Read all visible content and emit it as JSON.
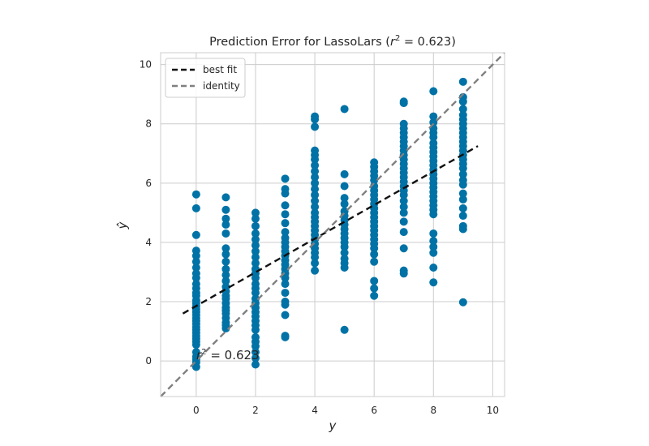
{
  "chart_data": {
    "type": "scatter",
    "title": "Prediction Error for LassoLars (r² = 0.623)",
    "title_parts": {
      "prefix": "Prediction Error for LassoLars (",
      "var": "r",
      "sup": "2",
      "suffix": " = 0.623)"
    },
    "xlabel": "y",
    "ylabel": "ŷ",
    "xlim": [
      -1.2,
      10.4
    ],
    "ylim": [
      -1.2,
      10.4
    ],
    "xticks": [
      0,
      2,
      4,
      6,
      8,
      10
    ],
    "yticks": [
      0,
      2,
      4,
      6,
      8,
      10
    ],
    "grid": true,
    "legend_position": "top-left",
    "annotation": {
      "var": "r",
      "sup": "2",
      "text": " = 0.623",
      "x": 0.0,
      "y": 0.0
    },
    "colors": {
      "points": "#0072a6",
      "best_fit": "#111111",
      "identity": "#808080",
      "grid": "#cccccc",
      "frame": "#cccccc"
    },
    "best_fit": {
      "name": "best fit",
      "x": [
        -0.45,
        9.5
      ],
      "y": [
        1.6,
        7.25
      ]
    },
    "identity": {
      "name": "identity",
      "x": [
        -1.2,
        10.4
      ],
      "y": [
        -1.2,
        10.4
      ]
    },
    "series": [
      {
        "x": 0,
        "y": [
          5.62,
          5.15,
          4.25,
          3.72,
          3.55,
          3.35,
          3.15,
          2.95,
          2.8,
          2.6,
          2.45,
          2.3,
          2.2,
          2.05,
          1.95,
          1.85,
          1.75,
          1.65,
          1.55,
          1.45,
          1.35,
          1.25,
          1.15,
          1.05,
          0.95,
          0.85,
          0.75,
          0.65,
          0.55,
          0.3,
          0.15,
          0.05,
          -0.05,
          -0.2
        ]
      },
      {
        "x": 1,
        "y": [
          5.52,
          5.1,
          4.8,
          4.6,
          4.3,
          3.8,
          3.6,
          3.35,
          3.1,
          2.9,
          2.7,
          2.5,
          2.35,
          2.2,
          2.1,
          1.95,
          1.8,
          1.7,
          1.6,
          1.45,
          1.3,
          1.2,
          1.1
        ]
      },
      {
        "x": 2,
        "y": [
          5.0,
          4.8,
          4.55,
          4.3,
          4.1,
          3.9,
          3.7,
          3.5,
          3.3,
          3.1,
          2.95,
          2.8,
          2.6,
          2.45,
          2.3,
          2.1,
          1.95,
          1.8,
          1.65,
          1.5,
          1.35,
          1.2,
          1.05,
          0.8,
          0.65,
          0.5,
          0.3,
          0.1,
          -0.12
        ]
      },
      {
        "x": 3,
        "y": [
          6.15,
          5.8,
          5.65,
          5.25,
          4.95,
          4.65,
          4.35,
          4.15,
          4.0,
          3.85,
          3.7,
          3.55,
          3.4,
          3.25,
          3.1,
          2.95,
          2.8,
          2.6,
          2.3,
          2.0,
          1.9,
          1.55,
          0.85,
          0.8
        ]
      },
      {
        "x": 4,
        "y": [
          8.25,
          8.15,
          7.9,
          7.1,
          6.95,
          6.8,
          6.6,
          6.4,
          6.2,
          6.0,
          5.8,
          5.6,
          5.4,
          5.2,
          5.0,
          4.85,
          4.7,
          4.55,
          4.4,
          4.25,
          4.1,
          3.95,
          3.8,
          3.65,
          3.5,
          3.3,
          3.05
        ]
      },
      {
        "x": 5,
        "y": [
          8.5,
          6.3,
          5.9,
          5.5,
          5.3,
          5.05,
          4.9,
          4.75,
          4.6,
          4.45,
          4.3,
          4.15,
          4.0,
          3.85,
          3.65,
          3.45,
          3.3,
          3.15,
          1.05
        ]
      },
      {
        "x": 6,
        "y": [
          6.7,
          6.55,
          6.4,
          6.25,
          6.1,
          5.9,
          5.75,
          5.6,
          5.45,
          5.3,
          5.15,
          5.0,
          4.85,
          4.7,
          4.55,
          4.4,
          4.25,
          4.1,
          3.95,
          3.8,
          3.6,
          3.35,
          2.7,
          2.45,
          2.2
        ]
      },
      {
        "x": 7,
        "y": [
          8.75,
          8.7,
          8.0,
          7.85,
          7.7,
          7.55,
          7.4,
          7.25,
          7.1,
          6.95,
          6.8,
          6.65,
          6.5,
          6.35,
          6.2,
          6.05,
          5.9,
          5.75,
          5.6,
          5.4,
          5.2,
          5.0,
          4.7,
          4.35,
          3.8,
          3.05,
          2.95
        ]
      },
      {
        "x": 8,
        "y": [
          9.1,
          8.25,
          8.05,
          7.85,
          7.7,
          7.55,
          7.35,
          7.2,
          7.05,
          6.9,
          6.75,
          6.6,
          6.45,
          6.3,
          6.15,
          6.0,
          5.85,
          5.7,
          5.55,
          5.4,
          5.25,
          5.1,
          4.95,
          4.3,
          4.05,
          3.85,
          3.65,
          3.15,
          2.65
        ]
      },
      {
        "x": 9,
        "y": [
          9.42,
          8.9,
          8.75,
          8.5,
          8.3,
          8.15,
          8.0,
          7.85,
          7.7,
          7.55,
          7.4,
          7.25,
          7.1,
          6.95,
          6.8,
          6.65,
          6.5,
          6.3,
          6.1,
          5.95,
          5.65,
          5.45,
          5.15,
          4.9,
          4.55,
          4.45,
          1.98
        ]
      }
    ]
  }
}
